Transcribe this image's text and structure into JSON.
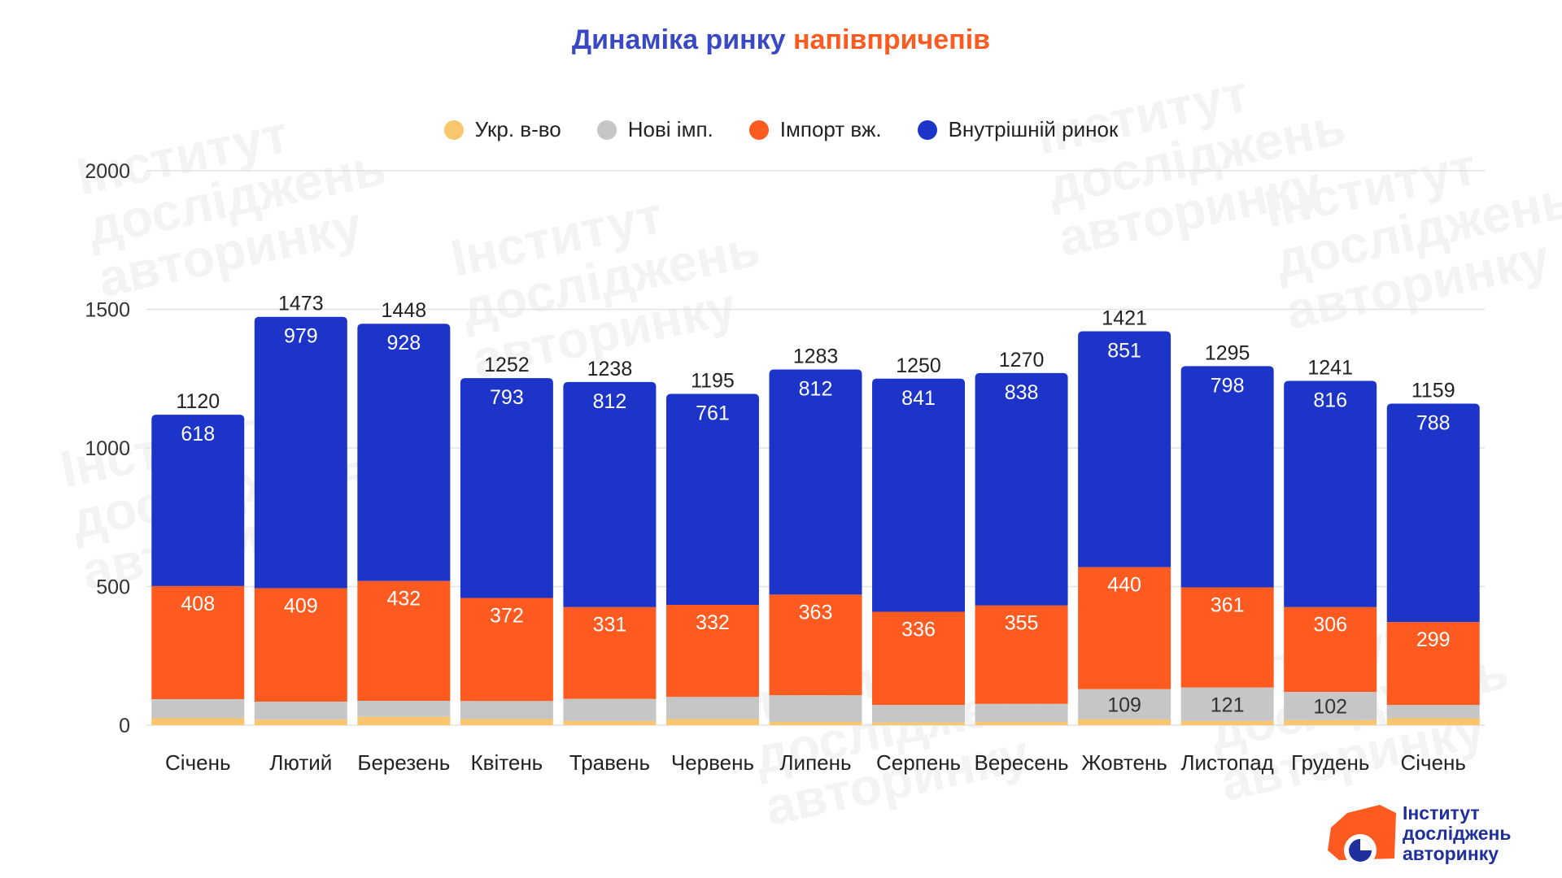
{
  "title": {
    "part1": "Динаміка ринку",
    "part2": "напівпричепів"
  },
  "colors": {
    "ukr": "#f9c66d",
    "new_imp": "#c6c6c6",
    "import_used": "#ff5a1f",
    "domestic": "#1c34c8",
    "title_blue": "#3949c6",
    "title_orange": "#ff5a1f"
  },
  "watermark_text": "Інститут досліджень авторинку",
  "logo": {
    "icon": "pie-chart-icon",
    "line1": "Інститут",
    "line2": "досліджень",
    "line3": "авторинку"
  },
  "chart_data": {
    "type": "bar",
    "stacked": true,
    "title": "Динаміка ринку напівпричепів",
    "legend": [
      "Укр. в-во",
      "Нові імп.",
      "Імпорт вж.",
      "Внутрішній ринок"
    ],
    "legend_position": "top-center",
    "categories": [
      "Січень",
      "Лютий",
      "Березень",
      "Квітень",
      "Травень",
      "Червень",
      "Липень",
      "Серпень",
      "Вересень",
      "Жовтень",
      "Листопад",
      "Грудень",
      "Січень"
    ],
    "ylim": [
      0,
      2000
    ],
    "yticks": [
      0,
      500,
      1000,
      1500,
      2000
    ],
    "grid": true,
    "series": [
      {
        "name": "Укр. в-во",
        "values": [
          25,
          20,
          30,
          22,
          15,
          22,
          12,
          10,
          12,
          21,
          15,
          18,
          25
        ],
        "labels": [
          "",
          "",
          "",
          "",
          "",
          "",
          "",
          "",
          "",
          "",
          "",
          "",
          ""
        ]
      },
      {
        "name": "Нові імп.",
        "values": [
          69,
          65,
          58,
          65,
          80,
          80,
          96,
          63,
          65,
          109,
          121,
          102,
          48
        ],
        "labels": [
          "",
          "",
          "",
          "",
          "",
          "",
          "",
          "",
          "",
          "109",
          "121",
          "102",
          ""
        ]
      },
      {
        "name": "Імпорт вж.",
        "values": [
          408,
          409,
          432,
          372,
          331,
          332,
          363,
          336,
          355,
          440,
          361,
          306,
          299
        ],
        "labels": [
          "408",
          "409",
          "432",
          "372",
          "331",
          "332",
          "363",
          "336",
          "355",
          "440",
          "361",
          "306",
          "299"
        ]
      },
      {
        "name": "Внутрішній ринок",
        "values": [
          618,
          979,
          928,
          793,
          812,
          761,
          812,
          841,
          838,
          851,
          798,
          816,
          788
        ],
        "labels": [
          "618",
          "979",
          "928",
          "793",
          "812",
          "761",
          "812",
          "841",
          "838",
          "851",
          "798",
          "816",
          "788"
        ]
      }
    ],
    "totals": [
      1120,
      1473,
      1448,
      1252,
      1238,
      1195,
      1283,
      1250,
      1270,
      1421,
      1295,
      1241,
      1159
    ]
  }
}
